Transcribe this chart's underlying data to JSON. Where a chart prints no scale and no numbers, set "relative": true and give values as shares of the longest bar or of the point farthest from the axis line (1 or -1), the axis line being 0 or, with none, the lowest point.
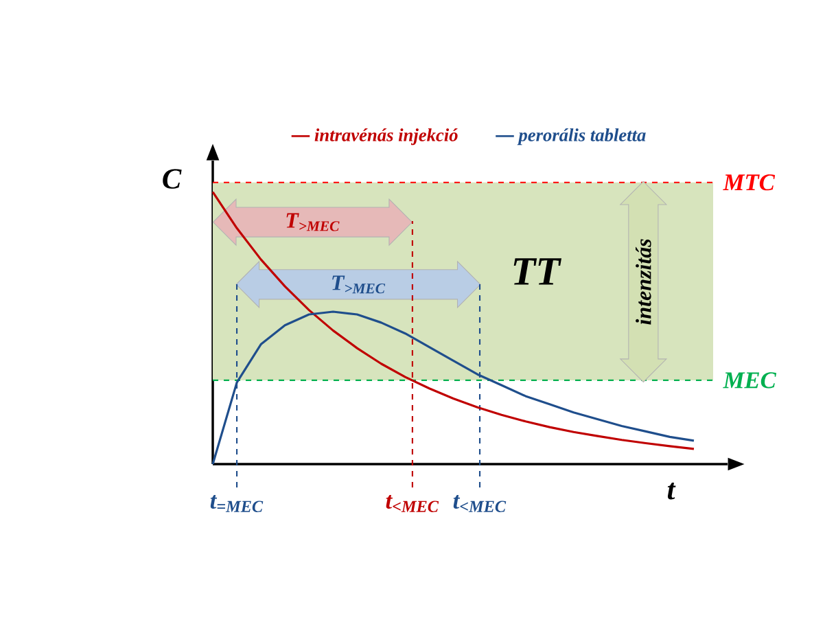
{
  "chart_data": {
    "type": "line",
    "relative": true,
    "xlabel": "t",
    "ylabel": "C",
    "categories": [
      null,
      null,
      null,
      null,
      null,
      null,
      null,
      null,
      null,
      null,
      null,
      null,
      null,
      null,
      null,
      null,
      null,
      null,
      null,
      null,
      null
    ],
    "legend": "top",
    "marker": "none",
    "line_style": "solid",
    "series": [
      {
        "name": "intravénás injekció",
        "color": "#c00000",
        "values": [
          1,
          0.867,
          0.752,
          0.653,
          0.566,
          0.491,
          0.426,
          0.369,
          0.32,
          0.278,
          0.241,
          0.209,
          0.181,
          0.157,
          0.136,
          0.118,
          0.103,
          0.089,
          0.077,
          0.066,
          0.056
        ]
      },
      {
        "name": "perorális tabletta",
        "color": "#1f4e8c",
        "values": [
          0,
          0.3,
          0.44,
          0.51,
          0.55,
          0.56,
          0.55,
          0.52,
          0.48,
          0.43,
          0.38,
          0.33,
          0.29,
          0.25,
          0.22,
          0.19,
          0.165,
          0.14,
          0.12,
          0.1,
          0.086
        ]
      }
    ],
    "ref_lines": [
      {
        "axis": "y",
        "value": 1.035,
        "label": "MTC",
        "color": "#ff0000",
        "line_style": "dashed"
      },
      {
        "axis": "y",
        "value": 0.308,
        "label": "MEC",
        "color": "#00b050",
        "line_style": "dashed"
      }
    ],
    "bands": [
      {
        "axis": "y",
        "from": 0.308,
        "to": 1.035,
        "label": "TT",
        "color": "#d7e4bd"
      }
    ],
    "annotations": [
      "T$_{>MEC}$",
      "T$_{>MEC}$",
      "intenzitás",
      "t$_{=MEC}$",
      "t$_{<MEC}$",
      "t$_{<MEC}$"
    ]
  }
}
